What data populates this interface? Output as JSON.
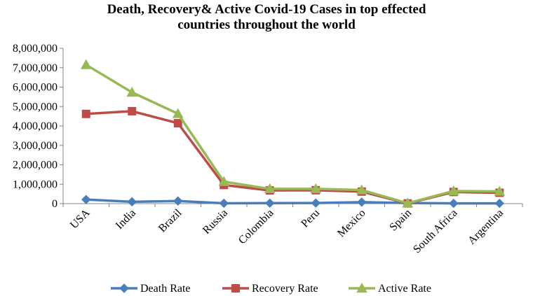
{
  "chart_data": {
    "type": "line",
    "title_lines": [
      "Death, Recovery& Active Covid-19 Cases in top effected",
      "countries throughout the world"
    ],
    "categories": [
      "USA",
      "India",
      "Brazil",
      "Russia",
      "Colombia",
      "Peru",
      "Mexico",
      "Spain",
      "South Africa",
      "Argentina"
    ],
    "ylim": [
      0,
      8000000
    ],
    "yticks": [
      0,
      1000000,
      2000000,
      3000000,
      4000000,
      5000000,
      6000000,
      7000000,
      8000000
    ],
    "ytick_labels": [
      "0",
      "1,000,000",
      "2,000,000",
      "3,000,000",
      "4,000,000",
      "5,000,000",
      "6,000,000",
      "7,000,000",
      "8,000,000"
    ],
    "grid": false,
    "legend_position": "bottom",
    "series": [
      {
        "name": "Death Rate",
        "color": "#4a7ebb",
        "marker": "diamond",
        "values": [
          210000,
          95000,
          135000,
          20000,
          25000,
          30000,
          75000,
          30000,
          15000,
          15000
        ]
      },
      {
        "name": "Recovery Rate",
        "color": "#be4b48",
        "marker": "square",
        "values": [
          4620000,
          4760000,
          4140000,
          960000,
          680000,
          690000,
          620000,
          10000,
          600000,
          560000
        ]
      },
      {
        "name": "Active Rate",
        "color": "#98b954",
        "marker": "triangle",
        "values": [
          7150000,
          5730000,
          4630000,
          1130000,
          760000,
          760000,
          700000,
          20000,
          650000,
          630000
        ]
      }
    ]
  }
}
